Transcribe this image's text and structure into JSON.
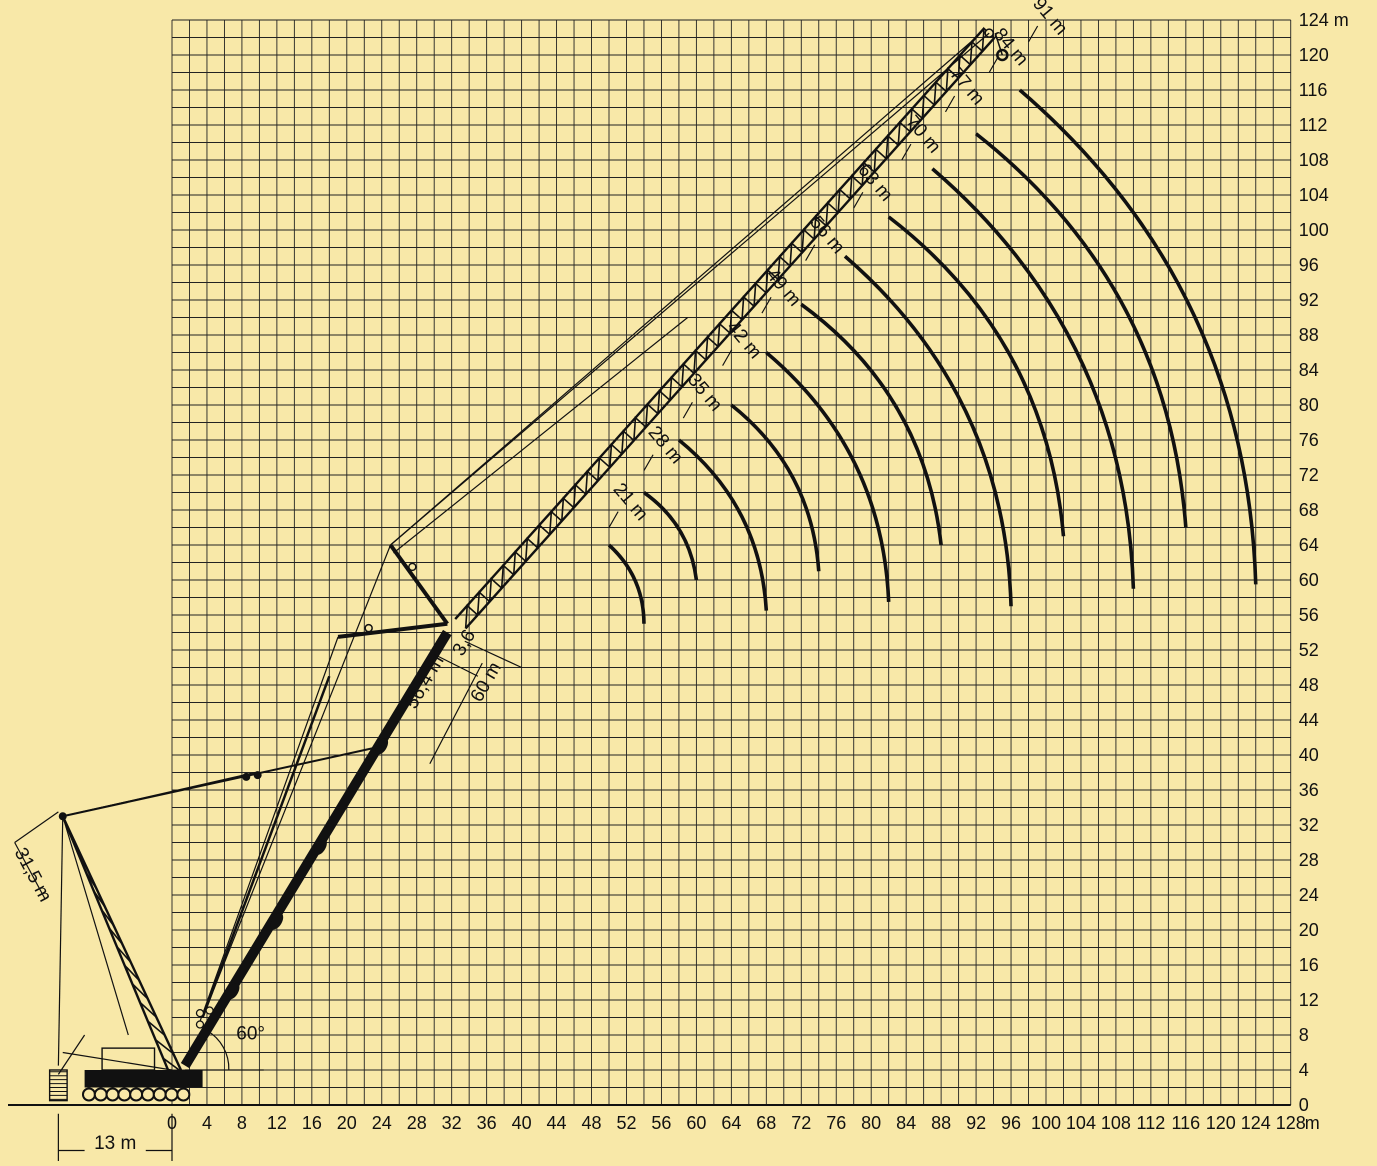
{
  "chart_data": {
    "type": "diagram",
    "x_axis": {
      "ticks": [
        0,
        4,
        8,
        12,
        16,
        20,
        24,
        28,
        32,
        36,
        40,
        44,
        48,
        52,
        56,
        60,
        64,
        68,
        72,
        76,
        80,
        84,
        88,
        92,
        96,
        100,
        104,
        108,
        112,
        116,
        120,
        124,
        128
      ],
      "unit_label": "m",
      "range": [
        0,
        128
      ]
    },
    "y_axis": {
      "ticks": [
        0,
        4,
        8,
        12,
        16,
        20,
        24,
        28,
        32,
        36,
        40,
        44,
        48,
        52,
        56,
        60,
        64,
        68,
        72,
        76,
        80,
        84,
        88,
        92,
        96,
        100,
        104,
        108,
        112,
        116,
        120,
        124
      ],
      "top_label": "124 m",
      "range": [
        0,
        124
      ]
    },
    "grid": true,
    "luffing_jib_lengths": [
      "21 m",
      "28 m",
      "35 m",
      "42 m",
      "49 m",
      "56 m",
      "63 m",
      "70 m",
      "77 m",
      "84 m",
      "91 m"
    ],
    "hook_curves": [
      {
        "jib": "21 m",
        "start": [
          50,
          64
        ],
        "end": [
          54,
          55
        ]
      },
      {
        "jib": "28 m",
        "start": [
          54,
          70
        ],
        "end": [
          60,
          60
        ]
      },
      {
        "jib": "35 m",
        "start": [
          58,
          76
        ],
        "end": [
          68,
          56.5
        ]
      },
      {
        "jib": "42 m",
        "start": [
          64,
          80
        ],
        "end": [
          74,
          61
        ]
      },
      {
        "jib": "49 m",
        "start": [
          68,
          86
        ],
        "end": [
          82,
          57.5
        ]
      },
      {
        "jib": "56 m",
        "start": [
          72,
          91.5
        ],
        "end": [
          88,
          64
        ]
      },
      {
        "jib": "63 m",
        "start": [
          77,
          97
        ],
        "end": [
          96,
          57
        ]
      },
      {
        "jib": "70 m",
        "start": [
          82,
          101.5
        ],
        "end": [
          102,
          65
        ]
      },
      {
        "jib": "77 m",
        "start": [
          87,
          107
        ],
        "end": [
          110,
          59
        ]
      },
      {
        "jib": "84 m",
        "start": [
          92,
          111
        ],
        "end": [
          116,
          66
        ]
      },
      {
        "jib": "91 m",
        "start": [
          97,
          116
        ],
        "end": [
          124,
          59.5
        ]
      }
    ],
    "main_boom_label": "56,4 m",
    "boom_extension_label": "3,6",
    "total_boom_label": "60 m",
    "boom_angle_label": "60°",
    "derrick_mast_label": "31,5 m",
    "counterweight_radius_label": "13 m"
  }
}
